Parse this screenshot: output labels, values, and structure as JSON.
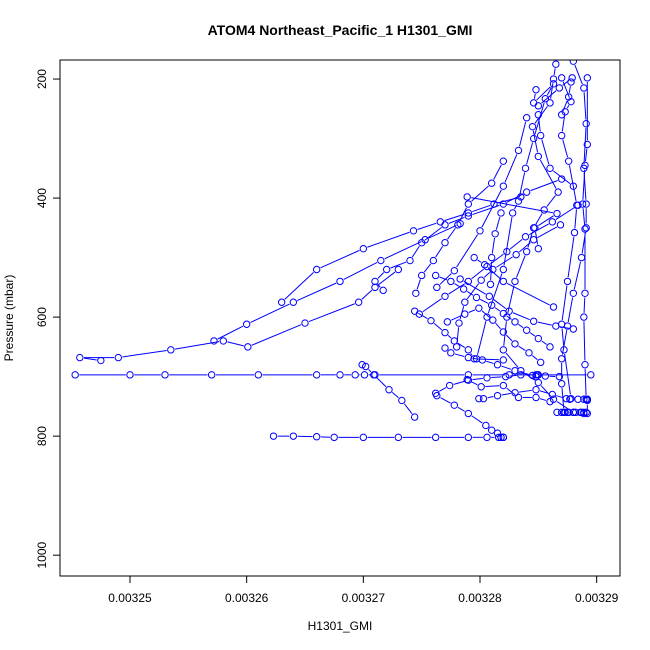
{
  "chart_data": {
    "type": "line",
    "title": "ATOM4 Northeast_Pacific_1 H1301_GMI",
    "xlabel": "H1301_GMI",
    "ylabel": "Pressure (mbar)",
    "xlim": [
      0.003244,
      0.003292
    ],
    "ylim": [
      1035,
      168
    ],
    "y_inverted": true,
    "grid": false,
    "marker": "open-circle",
    "line_color": "#0000ff",
    "x_ticks": [
      {
        "value": 0.00325,
        "label": "0.00325"
      },
      {
        "value": 0.00326,
        "label": "0.00326"
      },
      {
        "value": 0.00327,
        "label": "0.00327"
      },
      {
        "value": 0.00328,
        "label": "0.00328"
      },
      {
        "value": 0.00329,
        "label": "0.00329"
      }
    ],
    "y_ticks": [
      {
        "value": 200,
        "label": "200"
      },
      {
        "value": 400,
        "label": "400"
      },
      {
        "value": 600,
        "label": "600"
      },
      {
        "value": 800,
        "label": "800"
      },
      {
        "value": 1000,
        "label": "1000"
      }
    ],
    "series": [
      {
        "x": [
          0.003288,
          0.0032889,
          0.0032891,
          0.0032889,
          0.0032891,
          0.0032891,
          0.0032887,
          0.003288,
          0.0032875,
          0.003287,
          0.003287,
          0.0032872,
          0.0032875,
          0.003288,
          0.0032886,
          0.0032889
        ],
        "y": [
          170,
          215,
          275,
          350,
          410,
          450,
          500,
          560,
          615,
          670,
          712,
          760,
          760,
          760,
          760,
          762
        ]
      },
      {
        "x": [
          0.0032865,
          0.0032863,
          0.003286,
          0.0032845,
          0.003285,
          0.0032867,
          0.0032855,
          0.0032846,
          0.003284,
          0.003283,
          0.0032823,
          0.003282,
          0.0032835,
          0.003285,
          0.0032863,
          0.003288
        ],
        "y": [
          175,
          200,
          240,
          280,
          330,
          390,
          420,
          450,
          490,
          540,
          600,
          655,
          690,
          710,
          738,
          760
        ]
      },
      {
        "x": [
          0.0032892,
          0.0032892,
          0.003289,
          0.0032888,
          0.003289,
          0.003289,
          0.0032889,
          0.003289,
          0.0032891,
          0.0032892,
          0.0032892
        ],
        "y": [
          198,
          310,
          345,
          410,
          452,
          560,
          600,
          680,
          738,
          740,
          762
        ]
      },
      {
        "x": [
          0.003287,
          0.0032878,
          0.0032873,
          0.003287,
          0.0032876,
          0.0032883,
          0.0032881,
          0.0032875,
          0.003287,
          0.0032872,
          0.0032878
        ],
        "y": [
          198,
          238,
          255,
          295,
          338,
          412,
          458,
          540,
          612,
          655,
          737
        ]
      },
      {
        "x": [
          0.0032848,
          0.0032846,
          0.0032863,
          0.0032856,
          0.0032846,
          0.0032839,
          0.0032833,
          0.0032828,
          0.003282,
          0.0032806,
          0.0032797
        ],
        "y": [
          218,
          240,
          208,
          233,
          300,
          350,
          405,
          425,
          520,
          600,
          670
        ]
      },
      {
        "x": [
          0.003285,
          0.0032852,
          0.003286,
          0.003288
        ],
        "y": [
          260,
          295,
          350,
          380
        ]
      },
      {
        "x": [
          0.003282,
          0.003281,
          0.003279,
          0.0032781,
          0.003277,
          0.003276,
          0.003275,
          0.0032745
        ],
        "y": [
          338,
          375,
          410,
          445,
          475,
          505,
          530,
          560
        ]
      },
      {
        "x": [
          0.003284,
          0.0032833,
          0.003282,
          0.00328,
          0.0032778,
          0.0032763
        ],
        "y": [
          265,
          320,
          380,
          455,
          522,
          550
        ]
      },
      {
        "x": [
          0.0032879,
          0.0032868,
          0.003285
        ],
        "y": [
          198,
          215,
          245
        ]
      },
      {
        "x": [
          0.0032878,
          0.0032876,
          0.003287
        ],
        "y": [
          205,
          230,
          260
        ]
      },
      {
        "x": [
          0.0032789,
          0.0032866,
          0.0032847,
          0.003285
        ],
        "y": [
          398,
          426,
          450,
          485
        ]
      },
      {
        "x": [
          0.0032818,
          0.0032813,
          0.003281,
          0.0032809
        ],
        "y": [
          425,
          460,
          500,
          545
        ]
      },
      {
        "x": [
          0.0032869,
          0.0032846,
          0.0032831,
          0.0032811,
          0.0032801,
          0.0032787,
          0.0032782,
          0.003278
        ],
        "y": [
          445,
          470,
          495,
          520,
          538,
          575,
          610,
          650
        ]
      },
      {
        "x": [
          0.0032884,
          0.0032862,
          0.0032839,
          0.0032823,
          0.0032806,
          0.003279,
          0.003277,
          0.0032748
        ],
        "y": [
          412,
          440,
          465,
          490,
          515,
          540,
          565,
          595
        ]
      },
      {
        "x": [
          0.003287,
          0.003284,
          0.003282,
          0.003279,
          0.003277,
          0.003275,
          0.003274,
          0.003272,
          0.003271,
          0.0032717
        ],
        "y": [
          368,
          390,
          410,
          430,
          445,
          475,
          505,
          520,
          540,
          555
        ]
      },
      {
        "x": [
          0.0032783,
          0.0032753,
          0.0032715,
          0.003268,
          0.003264,
          0.00326,
          0.0032572
        ],
        "y": [
          443,
          470,
          505,
          540,
          575,
          612,
          640
        ]
      },
      {
        "x": [
          0.0032835,
          0.0032812,
          0.003279,
          0.0032766,
          0.0032743,
          0.00327,
          0.003266,
          0.003263
        ],
        "y": [
          398,
          410,
          425,
          440,
          455,
          485,
          520,
          575
        ]
      },
      {
        "x": [
          0.003273,
          0.003271,
          0.0032696,
          0.003265,
          0.0032601,
          0.003258,
          0.0032535,
          0.003249,
          0.0032457,
          0.0032475
        ],
        "y": [
          520,
          550,
          575,
          610,
          650,
          640,
          655,
          668,
          668,
          673
        ]
      },
      {
        "x": [
          0.0032795,
          0.0032804,
          0.003282,
          0.0032863
        ],
        "y": [
          500,
          512,
          540,
          583
        ]
      },
      {
        "x": [
          0.0032762,
          0.0032775,
          0.0032786,
          0.0032797,
          0.003281,
          0.003282,
          0.003283,
          0.003284,
          0.003285,
          0.003286
        ],
        "y": [
          530,
          540,
          553,
          567,
          580,
          594,
          608,
          622,
          636,
          650
        ]
      },
      {
        "x": [
          0.0032783,
          0.0032808,
          0.0032825,
          0.0032846,
          0.0032865,
          0.003288
        ],
        "y": [
          536,
          565,
          590,
          607,
          615,
          620
        ]
      },
      {
        "x": [
          0.0032744,
          0.0032758,
          0.003277,
          0.0032778,
          0.003279,
          0.0032795,
          0.003282
        ],
        "y": [
          590,
          606,
          626,
          640,
          655,
          670,
          672
        ]
      },
      {
        "x": [
          0.0032772,
          0.0032787,
          0.0032799,
          0.0032811,
          0.003282,
          0.003283,
          0.0032842,
          0.0032852
        ],
        "y": [
          608,
          595,
          585,
          605,
          625,
          645,
          660,
          676
        ]
      },
      {
        "x": [
          0.003277,
          0.0032775,
          0.003279,
          0.0032802,
          0.0032815,
          0.003283,
          0.0032845,
          0.0032848
        ],
        "y": [
          652,
          660,
          668,
          672,
          680,
          690,
          698,
          700
        ]
      },
      {
        "x": [
          0.0032453,
          0.00325,
          0.003253,
          0.003257,
          0.003261,
          0.003266,
          0.003268,
          0.0032693,
          0.0032701,
          0.003271,
          0.003279,
          0.0032825,
          0.0032849,
          0.003285,
          0.0032895
        ],
        "y": [
          697,
          697,
          697,
          697,
          697,
          697,
          697,
          697,
          697,
          697,
          697,
          697,
          697,
          697,
          697
        ]
      },
      {
        "x": [
          0.0032699,
          0.0032702,
          0.0032709,
          0.0032722,
          0.0032733,
          0.0032744
        ],
        "y": [
          680,
          683,
          697,
          722,
          740,
          768
        ]
      },
      {
        "x": [
          0.0032789,
          0.0032801,
          0.003282,
          0.0032833,
          0.0032848,
          0.003286
        ],
        "y": [
          705,
          717,
          715,
          735,
          735,
          742
        ]
      },
      {
        "x": [
          0.0032762,
          0.0032774,
          0.003279,
          0.0032806,
          0.0032822,
          0.0032835,
          0.0032848,
          0.0032856,
          0.0032868
        ],
        "y": [
          728,
          715,
          706,
          702,
          700,
          697,
          697,
          699,
          700
        ]
      },
      {
        "x": [
          0.0032799,
          0.0032803,
          0.0032815,
          0.003283,
          0.0032848,
          0.0032862,
          0.0032874
        ],
        "y": [
          737,
          737,
          732,
          727,
          722,
          730,
          737
        ]
      },
      {
        "x": [
          0.0032763,
          0.0032778,
          0.003279,
          0.0032805,
          0.003281,
          0.0032815,
          0.003282
        ],
        "y": [
          732,
          748,
          762,
          782,
          790,
          795,
          802
        ]
      },
      {
        "x": [
          0.0032623,
          0.003264,
          0.003266,
          0.0032675,
          0.00327,
          0.003273,
          0.0032762,
          0.003279,
          0.0032806,
          0.0032816,
          0.0032818,
          0.003282
        ],
        "y": [
          800,
          800,
          801,
          802,
          802,
          802,
          802,
          802,
          802,
          802,
          802,
          802
        ]
      },
      {
        "x": [
          0.0032866,
          0.003287,
          0.0032873,
          0.0032876,
          0.0032882,
          0.0032887,
          0.0032889,
          0.0032891
        ],
        "y": [
          760,
          760,
          760,
          760,
          760,
          760,
          760,
          760
        ]
      },
      {
        "x": [
          0.0032877,
          0.0032884,
          0.0032889,
          0.0032891,
          0.0032892
        ],
        "y": [
          738,
          738,
          738,
          738,
          738
        ]
      }
    ]
  }
}
